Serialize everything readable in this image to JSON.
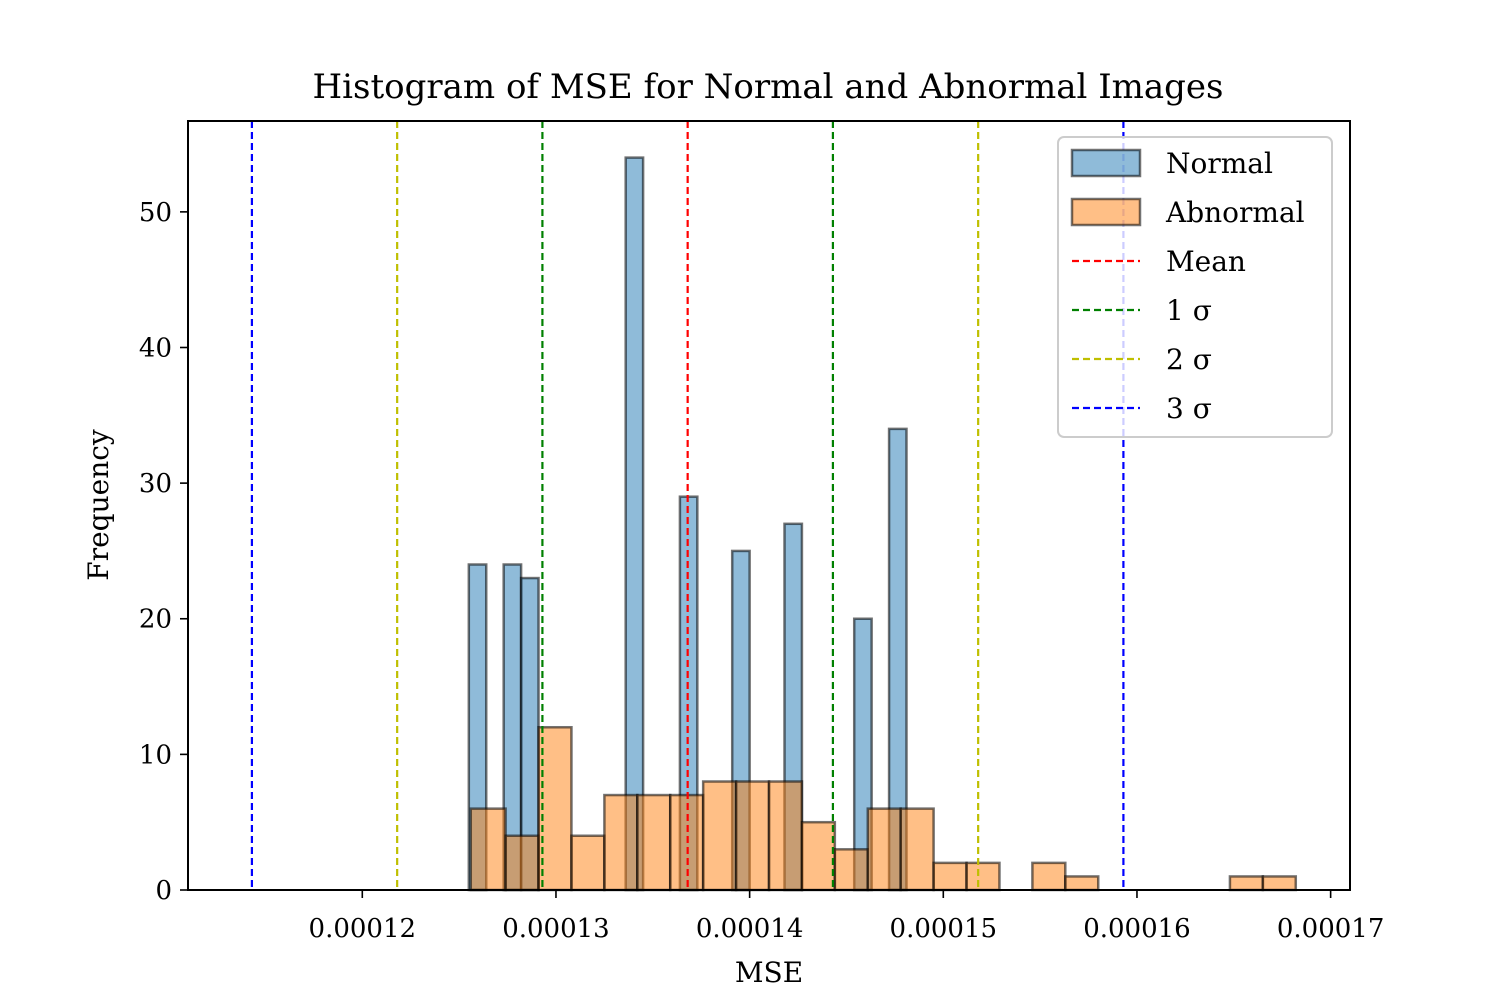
{
  "chart_data": {
    "type": "histogram",
    "title": "Histogram of MSE for Normal and Abnormal Images",
    "xlabel": "MSE",
    "ylabel": "Frequency",
    "xlim": [
      0.000111,
      0.000171
    ],
    "ylim": [
      0,
      56.7
    ],
    "xticks": [
      0.00012,
      0.00013,
      0.00014,
      0.00015,
      0.00016,
      0.00017
    ],
    "xtick_labels": [
      "0.00012",
      "0.00013",
      "0.00014",
      "0.00015",
      "0.00016",
      "0.00017"
    ],
    "yticks": [
      0,
      10,
      20,
      30,
      40,
      50
    ],
    "ytick_labels": [
      "0",
      "10",
      "20",
      "30",
      "40",
      "50"
    ],
    "grid": false,
    "legend_position": "top-right",
    "series": [
      {
        "name": "Normal",
        "color": "#1f77b4",
        "opacity": 0.5,
        "bins": [
          {
            "x0": 0.0001255,
            "x1": 0.0001264,
            "count": 24
          },
          {
            "x0": 0.0001273,
            "x1": 0.0001282,
            "count": 24
          },
          {
            "x0": 0.0001282,
            "x1": 0.0001291,
            "count": 23
          },
          {
            "x0": 0.0001336,
            "x1": 0.0001345,
            "count": 54
          },
          {
            "x0": 0.0001364,
            "x1": 0.0001373,
            "count": 29
          },
          {
            "x0": 0.0001391,
            "x1": 0.00014,
            "count": 25
          },
          {
            "x0": 0.0001418,
            "x1": 0.0001427,
            "count": 27
          },
          {
            "x0": 0.0001454,
            "x1": 0.0001463,
            "count": 20
          },
          {
            "x0": 0.0001472,
            "x1": 0.0001481,
            "count": 34
          }
        ]
      },
      {
        "name": "Abnormal",
        "color": "#ff7f0e",
        "opacity": 0.5,
        "bins": [
          {
            "x0": 0.0001256,
            "x1": 0.0001274,
            "count": 6
          },
          {
            "x0": 0.0001274,
            "x1": 0.0001291,
            "count": 4
          },
          {
            "x0": 0.0001291,
            "x1": 0.0001308,
            "count": 12
          },
          {
            "x0": 0.0001308,
            "x1": 0.0001325,
            "count": 4
          },
          {
            "x0": 0.0001325,
            "x1": 0.0001342,
            "count": 7
          },
          {
            "x0": 0.0001342,
            "x1": 0.0001359,
            "count": 7
          },
          {
            "x0": 0.0001359,
            "x1": 0.0001376,
            "count": 7
          },
          {
            "x0": 0.0001376,
            "x1": 0.0001393,
            "count": 8
          },
          {
            "x0": 0.0001393,
            "x1": 0.000141,
            "count": 8
          },
          {
            "x0": 0.000141,
            "x1": 0.0001427,
            "count": 8
          },
          {
            "x0": 0.0001427,
            "x1": 0.0001444,
            "count": 5
          },
          {
            "x0": 0.0001444,
            "x1": 0.0001461,
            "count": 3
          },
          {
            "x0": 0.0001461,
            "x1": 0.0001478,
            "count": 6
          },
          {
            "x0": 0.0001478,
            "x1": 0.0001495,
            "count": 6
          },
          {
            "x0": 0.0001495,
            "x1": 0.0001512,
            "count": 2
          },
          {
            "x0": 0.0001512,
            "x1": 0.0001529,
            "count": 2
          },
          {
            "x0": 0.0001546,
            "x1": 0.0001563,
            "count": 2
          },
          {
            "x0": 0.0001563,
            "x1": 0.000158,
            "count": 1
          },
          {
            "x0": 0.0001648,
            "x1": 0.0001665,
            "count": 1
          },
          {
            "x0": 0.0001665,
            "x1": 0.0001682,
            "count": 1
          }
        ]
      }
    ],
    "reference_lines": [
      {
        "name": "Mean",
        "color": "#ff0000",
        "values": [
          0.0001368
        ]
      },
      {
        "name": "1 σ",
        "color": "#008000",
        "values": [
          0.0001293,
          0.0001443
        ]
      },
      {
        "name": "2 σ",
        "color": "#bfbf00",
        "values": [
          0.0001218,
          0.0001518
        ]
      },
      {
        "name": "3 σ",
        "color": "#0000ff",
        "values": [
          0.0001143,
          0.0001593
        ]
      }
    ]
  }
}
